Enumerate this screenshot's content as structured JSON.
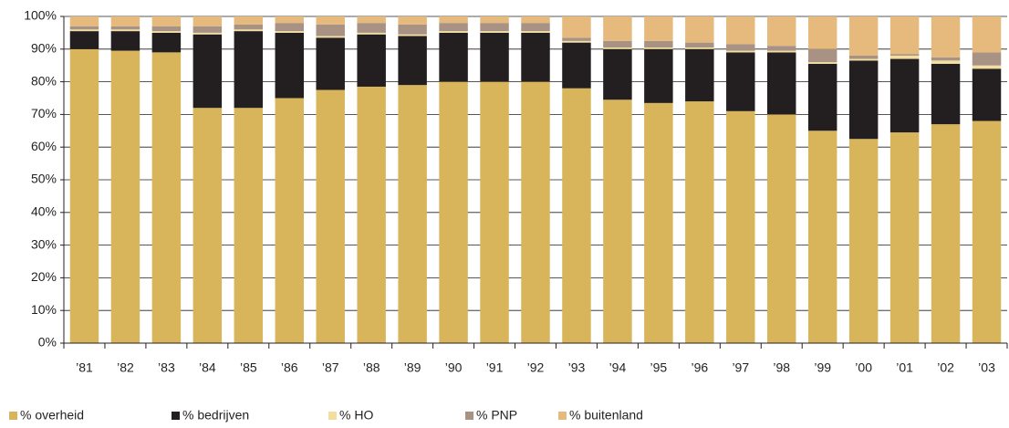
{
  "chart_data": {
    "type": "stacked_bar",
    "categories": [
      "’81",
      "’82",
      "’83",
      "’84",
      "’85",
      "’86",
      "’87",
      "’88",
      "’89",
      "’90",
      "’91",
      "’92",
      "’93",
      "’94",
      "’95",
      "’96",
      "’97",
      "’98",
      "’99",
      "’00",
      "’01",
      "’02",
      "’03"
    ],
    "series": [
      {
        "name": "% overheid",
        "color": "#d8b55a",
        "values": [
          90,
          89.5,
          89,
          72,
          72,
          75,
          77.5,
          78.5,
          79,
          80,
          80,
          80,
          78,
          74.5,
          73.5,
          74,
          71,
          70,
          65,
          62.5,
          64.5,
          67,
          68
        ]
      },
      {
        "name": "% bedrijven",
        "color": "#231f20",
        "values": [
          5.5,
          6,
          6,
          22.5,
          23.5,
          20,
          16,
          16,
          15,
          15,
          15,
          15,
          14,
          15.5,
          16.5,
          16,
          18,
          19,
          20.5,
          24,
          22.5,
          18.5,
          16
        ]
      },
      {
        "name": "% HO",
        "color": "#f2dea0",
        "values": [
          0.5,
          0.5,
          0.5,
          0.5,
          0.5,
          0.5,
          0.5,
          0.5,
          0.5,
          0.5,
          0.5,
          0.5,
          0.5,
          0.5,
          0.5,
          0.5,
          0.5,
          0.5,
          0.5,
          0.5,
          1,
          1,
          1
        ]
      },
      {
        "name": "% PNP",
        "color": "#a89283",
        "values": [
          1,
          1,
          1.5,
          2,
          1.5,
          2.5,
          3.5,
          3,
          3,
          2.5,
          2.5,
          2.5,
          1,
          2,
          2,
          1.5,
          2,
          1.5,
          4,
          1,
          0.5,
          1,
          4
        ]
      },
      {
        "name": "% buitenland",
        "color": "#e6ba7c",
        "values": [
          3,
          3,
          3,
          3,
          2.5,
          2,
          2.5,
          2,
          2.5,
          2,
          2,
          2,
          6.5,
          7.5,
          7.5,
          8,
          8.5,
          9,
          10,
          12,
          11.5,
          12.5,
          11
        ]
      }
    ],
    "ylim": [
      0,
      100
    ],
    "yticks": [
      {
        "value": 0,
        "label": "0%"
      },
      {
        "value": 10,
        "label": "10%"
      },
      {
        "value": 20,
        "label": "20%"
      },
      {
        "value": 30,
        "label": "30%"
      },
      {
        "value": 40,
        "label": "40%"
      },
      {
        "value": 50,
        "label": "50%"
      },
      {
        "value": 60,
        "label": "60%"
      },
      {
        "value": 70,
        "label": "70%"
      },
      {
        "value": 80,
        "label": "80%"
      },
      {
        "value": 90,
        "label": "90%"
      },
      {
        "value": 100,
        "label": "100%"
      }
    ],
    "grid": true
  }
}
